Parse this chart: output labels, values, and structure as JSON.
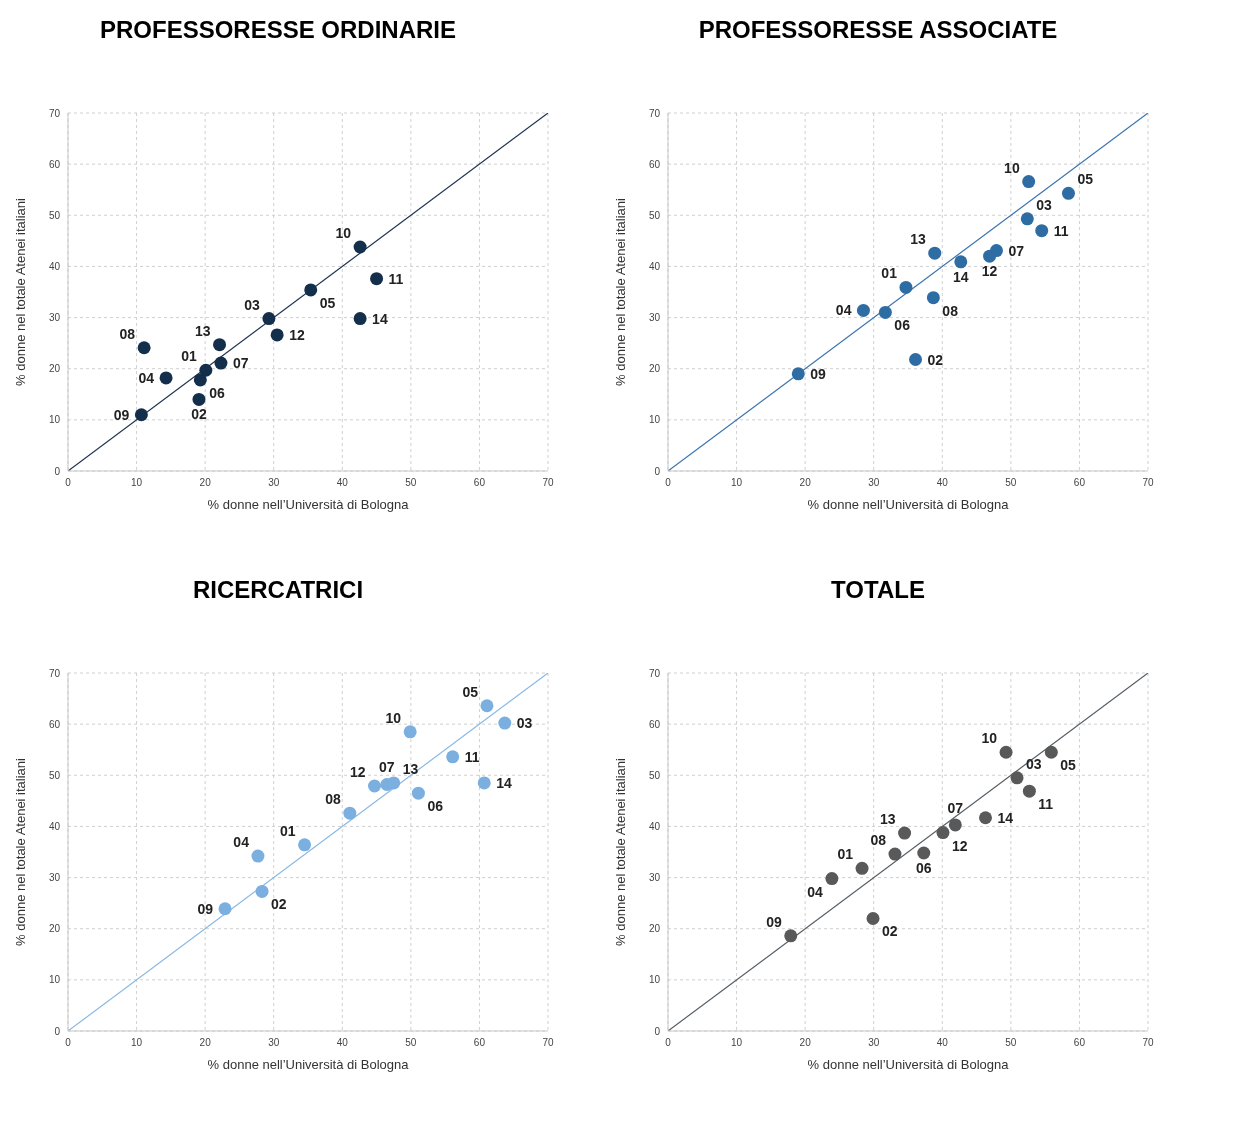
{
  "chart_data": [
    {
      "type": "scatter",
      "title": "PROFESSORESSE ORDINARIE",
      "xlabel": "% donne nell’Università di Bologna",
      "ylabel": "% donne nel totale Atenei italiani",
      "xlim": [
        0,
        70
      ],
      "ylim": [
        0,
        70
      ],
      "xticks": [
        0,
        10,
        20,
        30,
        40,
        50,
        60,
        70
      ],
      "yticks": [
        0,
        10,
        20,
        30,
        40,
        50,
        60,
        70
      ],
      "grid": true,
      "series": [
        {
          "marker": "circle",
          "color": "#132f4c",
          "x": [
            20.1,
            19.1,
            29.3,
            14.3,
            35.4,
            19.3,
            22.3,
            11.1,
            10.7,
            42.6,
            45.0,
            30.5,
            22.1,
            42.6
          ],
          "values": [
            19.7,
            14.0,
            29.8,
            18.2,
            35.4,
            17.8,
            21.1,
            24.1,
            11.0,
            43.8,
            37.6,
            26.6,
            24.7,
            29.8
          ]
        },
        {
          "type": "line",
          "marker": "none",
          "color": "#1f3550",
          "x": [
            0,
            70
          ],
          "values": [
            0,
            70
          ]
        }
      ],
      "annotations": [
        {
          "text": "01",
          "x": 20.1,
          "y": 19.7
        },
        {
          "text": "02",
          "x": 19.1,
          "y": 14.0
        },
        {
          "text": "03",
          "x": 29.3,
          "y": 29.8
        },
        {
          "text": "04",
          "x": 14.3,
          "y": 18.2
        },
        {
          "text": "05",
          "x": 35.4,
          "y": 35.4
        },
        {
          "text": "06",
          "x": 19.3,
          "y": 17.8
        },
        {
          "text": "07",
          "x": 22.3,
          "y": 21.1
        },
        {
          "text": "08",
          "x": 11.1,
          "y": 24.1
        },
        {
          "text": "09",
          "x": 10.7,
          "y": 11.0
        },
        {
          "text": "10",
          "x": 42.6,
          "y": 43.8
        },
        {
          "text": "11",
          "x": 45.0,
          "y": 37.6
        },
        {
          "text": "12",
          "x": 30.5,
          "y": 26.6
        },
        {
          "text": "13",
          "x": 22.1,
          "y": 24.7
        },
        {
          "text": "14",
          "x": 42.6,
          "y": 29.8
        }
      ]
    },
    {
      "type": "scatter",
      "title": "PROFESSORESSE ASSOCIATE",
      "xlabel": "% donne nell’Università di Bologna",
      "ylabel": "% donne nel totale Atenei italiani",
      "xlim": [
        0,
        70
      ],
      "ylim": [
        0,
        70
      ],
      "xticks": [
        0,
        10,
        20,
        30,
        40,
        50,
        60,
        70
      ],
      "yticks": [
        0,
        10,
        20,
        30,
        40,
        50,
        60,
        70
      ],
      "grid": true,
      "series": [
        {
          "marker": "circle",
          "color": "#2e6ca4",
          "x": [
            34.7,
            36.1,
            52.4,
            28.5,
            58.4,
            31.7,
            47.9,
            38.7,
            19.0,
            52.6,
            54.5,
            46.9,
            38.9,
            42.7
          ],
          "values": [
            35.9,
            21.8,
            49.3,
            31.4,
            54.3,
            31.0,
            43.1,
            33.9,
            19.0,
            56.6,
            47.0,
            42.0,
            42.6,
            40.9
          ]
        },
        {
          "type": "line",
          "marker": "none",
          "color": "#3a74b0",
          "x": [
            0,
            70
          ],
          "values": [
            0,
            70
          ]
        }
      ],
      "annotations": [
        {
          "text": "01",
          "x": 34.7,
          "y": 35.9
        },
        {
          "text": "02",
          "x": 36.1,
          "y": 21.8
        },
        {
          "text": "03",
          "x": 52.4,
          "y": 49.3
        },
        {
          "text": "04",
          "x": 28.5,
          "y": 31.4
        },
        {
          "text": "05",
          "x": 58.4,
          "y": 54.3
        },
        {
          "text": "06",
          "x": 31.7,
          "y": 31.0
        },
        {
          "text": "07",
          "x": 47.9,
          "y": 43.1
        },
        {
          "text": "08",
          "x": 38.7,
          "y": 33.9
        },
        {
          "text": "09",
          "x": 19.0,
          "y": 19.0
        },
        {
          "text": "10",
          "x": 52.6,
          "y": 56.6
        },
        {
          "text": "11",
          "x": 54.5,
          "y": 47.0
        },
        {
          "text": "12",
          "x": 46.9,
          "y": 42.0
        },
        {
          "text": "13",
          "x": 38.9,
          "y": 42.6
        },
        {
          "text": "14",
          "x": 42.7,
          "y": 40.9
        }
      ]
    },
    {
      "type": "scatter",
      "title": "RICERCATRICI",
      "xlabel": "% donne nell’Università di Bologna",
      "ylabel": "% donne nel totale Atenei italiani",
      "xlim": [
        0,
        70
      ],
      "ylim": [
        0,
        70
      ],
      "xticks": [
        0,
        10,
        20,
        30,
        40,
        50,
        60,
        70
      ],
      "yticks": [
        0,
        10,
        20,
        30,
        40,
        50,
        60,
        70
      ],
      "grid": true,
      "series": [
        {
          "marker": "circle",
          "color": "#7aafe0",
          "x": [
            34.5,
            28.3,
            63.7,
            27.7,
            61.1,
            51.1,
            46.5,
            41.1,
            22.9,
            49.9,
            56.1,
            44.7,
            47.5,
            60.7
          ],
          "values": [
            36.4,
            27.3,
            60.2,
            34.2,
            63.6,
            46.5,
            48.2,
            42.6,
            23.9,
            58.5,
            53.6,
            47.9,
            48.5,
            48.5
          ]
        },
        {
          "type": "line",
          "marker": "none",
          "color": "#8ab8e4",
          "x": [
            0,
            70
          ],
          "values": [
            0,
            70
          ]
        }
      ],
      "annotations": [
        {
          "text": "01",
          "x": 34.5,
          "y": 36.4
        },
        {
          "text": "02",
          "x": 28.3,
          "y": 27.3
        },
        {
          "text": "03",
          "x": 63.7,
          "y": 60.2
        },
        {
          "text": "04",
          "x": 27.7,
          "y": 34.2
        },
        {
          "text": "05",
          "x": 61.1,
          "y": 63.6
        },
        {
          "text": "06",
          "x": 51.1,
          "y": 46.5
        },
        {
          "text": "07",
          "x": 46.5,
          "y": 48.2
        },
        {
          "text": "08",
          "x": 41.1,
          "y": 42.6
        },
        {
          "text": "09",
          "x": 22.9,
          "y": 23.9
        },
        {
          "text": "10",
          "x": 49.9,
          "y": 58.5
        },
        {
          "text": "11",
          "x": 56.1,
          "y": 53.6
        },
        {
          "text": "12",
          "x": 44.7,
          "y": 47.9
        },
        {
          "text": "13",
          "x": 47.5,
          "y": 48.5
        },
        {
          "text": "14",
          "x": 60.7,
          "y": 48.5
        }
      ]
    },
    {
      "type": "scatter",
      "title": "TOTALE",
      "xlabel": "% donne nell’Università di Bologna",
      "ylabel": "% donne nel totale Atenei italiani",
      "xlim": [
        0,
        70
      ],
      "ylim": [
        0,
        70
      ],
      "xticks": [
        0,
        10,
        20,
        30,
        40,
        50,
        60,
        70
      ],
      "yticks": [
        0,
        10,
        20,
        30,
        40,
        50,
        60,
        70
      ],
      "grid": true,
      "series": [
        {
          "marker": "circle",
          "color": "#595959",
          "x": [
            28.3,
            29.9,
            50.9,
            23.9,
            55.9,
            37.3,
            41.9,
            33.1,
            17.9,
            49.3,
            52.7,
            40.1,
            34.5,
            46.3
          ],
          "values": [
            31.8,
            22.0,
            49.5,
            29.8,
            54.5,
            34.8,
            40.3,
            34.6,
            18.6,
            54.5,
            46.9,
            38.8,
            38.7,
            41.7
          ]
        },
        {
          "type": "line",
          "marker": "none",
          "color": "#555e66",
          "x": [
            0,
            70
          ],
          "values": [
            0,
            70
          ]
        }
      ],
      "annotations": [
        {
          "text": "01",
          "x": 28.3,
          "y": 31.8
        },
        {
          "text": "02",
          "x": 29.9,
          "y": 22.0
        },
        {
          "text": "03",
          "x": 50.9,
          "y": 49.5
        },
        {
          "text": "04",
          "x": 23.9,
          "y": 29.8
        },
        {
          "text": "05",
          "x": 55.9,
          "y": 54.5
        },
        {
          "text": "06",
          "x": 37.3,
          "y": 34.8
        },
        {
          "text": "07",
          "x": 41.9,
          "y": 40.3
        },
        {
          "text": "08",
          "x": 33.1,
          "y": 34.6
        },
        {
          "text": "09",
          "x": 17.9,
          "y": 18.6
        },
        {
          "text": "10",
          "x": 49.3,
          "y": 54.5
        },
        {
          "text": "11",
          "x": 52.7,
          "y": 46.9
        },
        {
          "text": "12",
          "x": 40.1,
          "y": 38.8
        },
        {
          "text": "13",
          "x": 34.5,
          "y": 38.7
        },
        {
          "text": "14",
          "x": 46.3,
          "y": 41.7
        }
      ]
    }
  ]
}
